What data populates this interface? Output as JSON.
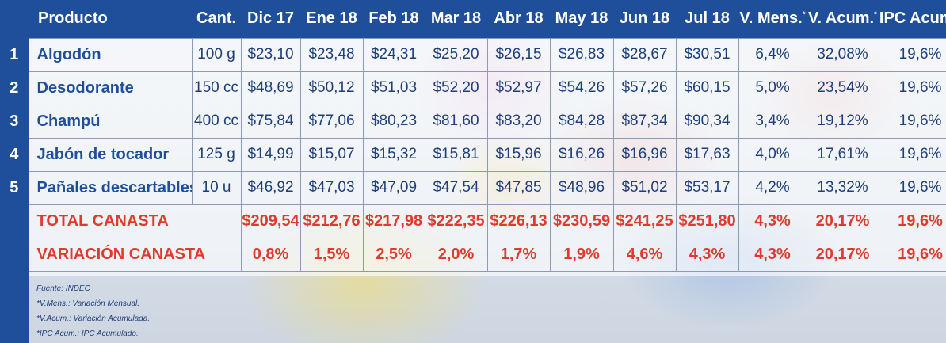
{
  "header": {
    "product": "Producto",
    "qty": "Cant.",
    "months": [
      "Dic 17",
      "Ene 18",
      "Feb 18",
      "Mar 18",
      "Abr 18",
      "May 18",
      "Jun 18",
      "Jul 18"
    ],
    "monthly_var": "V. Mens.",
    "accum_var": "V. Acum.",
    "ipc_accum": "IPC Acum.",
    "asterisk": "*"
  },
  "rows": [
    {
      "idx": "1",
      "product": "Algodón",
      "qty": "100 g",
      "prices": [
        "$23,10",
        "$23,48",
        "$24,31",
        "$25,20",
        "$26,15",
        "$26,83",
        "$28,67",
        "$30,51"
      ],
      "monthly_var": "6,4%",
      "accum_var": "32,08%",
      "ipc": "19,6%"
    },
    {
      "idx": "2",
      "product": "Desodorante",
      "qty": "150 cc",
      "prices": [
        "$48,69",
        "$50,12",
        "$51,03",
        "$52,20",
        "$52,97",
        "$54,26",
        "$57,26",
        "$60,15"
      ],
      "monthly_var": "5,0%",
      "accum_var": "23,54%",
      "ipc": "19,6%"
    },
    {
      "idx": "3",
      "product": "Champú",
      "qty": "400 cc",
      "prices": [
        "$75,84",
        "$77,06",
        "$80,23",
        "$81,60",
        "$83,20",
        "$84,28",
        "$87,34",
        "$90,34"
      ],
      "monthly_var": "3,4%",
      "accum_var": "19,12%",
      "ipc": "19,6%"
    },
    {
      "idx": "4",
      "product": "Jabón de tocador",
      "qty": "125 g",
      "prices": [
        "$14,99",
        "$15,07",
        "$15,32",
        "$15,81",
        "$15,96",
        "$16,26",
        "$16,96",
        "$17,63"
      ],
      "monthly_var": "4,0%",
      "accum_var": "17,61%",
      "ipc": "19,6%"
    },
    {
      "idx": "5",
      "product": "Pañales descartables",
      "qty": "10 u",
      "prices": [
        "$46,92",
        "$47,03",
        "$47,09",
        "$47,54",
        "$47,85",
        "$48,96",
        "$51,02",
        "$53,17"
      ],
      "monthly_var": "4,2%",
      "accum_var": "13,32%",
      "ipc": "19,6%"
    }
  ],
  "total": {
    "label": "TOTAL CANASTA",
    "prices": [
      "$209,54",
      "$212,76",
      "$217,98",
      "$222,35",
      "$226,13",
      "$230,59",
      "$241,25",
      "$251,80"
    ],
    "monthly_var": "4,3%",
    "accum_var": "20,17%",
    "ipc": "19,6%"
  },
  "variation": {
    "label": "VARIACIÓN CANASTA",
    "values": [
      "0,8%",
      "1,5%",
      "2,5%",
      "2,0%",
      "1,7%",
      "1,9%",
      "4,6%",
      "4,3%"
    ],
    "monthly_var": "4,3%",
    "accum_var": "20,17%",
    "ipc": "19,6%"
  },
  "notes": {
    "source": "Fuente: INDEC",
    "n1": "*V.Mens.: Variación Mensual.",
    "n2": "*V.Acum.: Variación Acumulada.",
    "n3": "*IPC Acum.: IPC Acumulado."
  },
  "colors": {
    "brand_blue": "#1f4f9a",
    "accent_red": "#e03a2f",
    "text_blue": "#1f3f7a"
  }
}
